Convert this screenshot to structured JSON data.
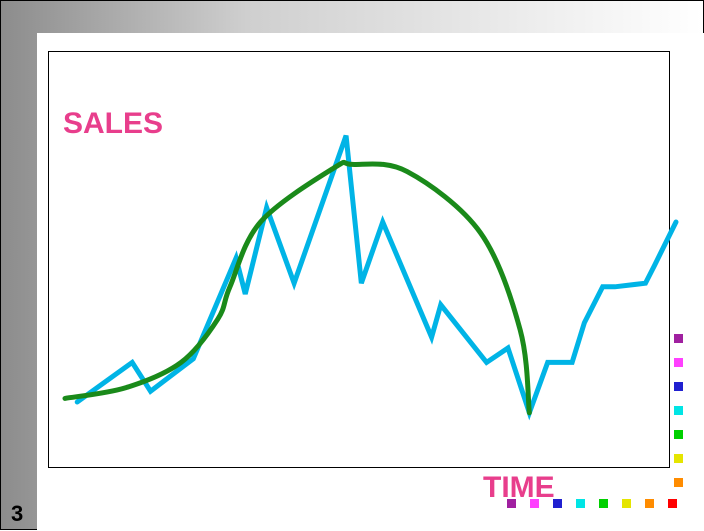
{
  "slide": {
    "number": "3"
  },
  "chart_data": {
    "type": "line",
    "title": "",
    "xlabel": "TIME",
    "ylabel": "SALES",
    "grid": false,
    "legend": "none",
    "xlim": [
      0,
      100
    ],
    "ylim": [
      0,
      100
    ],
    "series": [
      {
        "color": "#00b4e6",
        "x": [
          2,
          11,
          14,
          21,
          28,
          29.5,
          33,
          37.5,
          46,
          48.5,
          52,
          60,
          61.5,
          69,
          72.5,
          76,
          79,
          83,
          85,
          88,
          90,
          95,
          96.5,
          100
        ],
        "y": [
          15,
          26,
          18,
          27,
          55,
          45,
          69,
          48,
          89,
          48,
          65,
          33,
          42,
          26,
          30,
          12,
          26,
          26,
          37,
          47,
          47,
          48,
          53,
          65
        ]
      },
      {
        "color": "#1a8a1a",
        "x": [
          0,
          10,
          19,
          25,
          27,
          32,
          44,
          47,
          56,
          68,
          74.5,
          76
        ],
        "y": [
          16,
          19,
          26,
          38,
          47,
          65,
          80,
          81,
          79,
          62,
          35,
          12
        ]
      }
    ]
  },
  "decor": {
    "squares_bottom": [
      "#a020a0",
      "#ff40ff",
      "#2020d0",
      "#00e5e5",
      "#00d000",
      "#e5e500",
      "#ff8c00",
      "#ff0000"
    ],
    "squares_right": [
      "#a020a0",
      "#ff40ff",
      "#2020d0",
      "#00e5e5",
      "#00d000",
      "#e5e500",
      "#ff8c00"
    ]
  }
}
